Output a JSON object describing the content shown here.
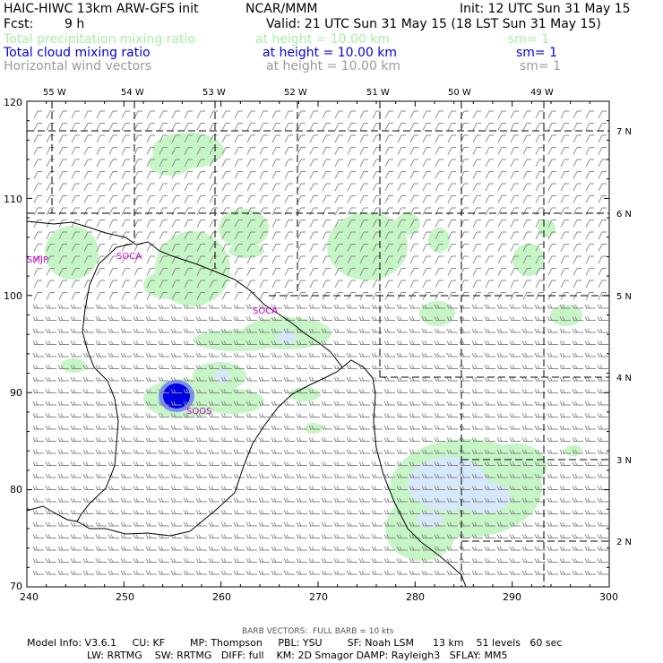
{
  "header": {
    "model": "HAIC-HIWC 13km ARW-GFS init",
    "org": "NCAR/MMM",
    "init": "Init: 12 UTC Sun 31 May 15",
    "fcst_label": "Fcst:",
    "fcst_value": "9 h",
    "valid": "Valid: 21 UTC Sun 31 May 15 (18 LST Sun 31 May 15)"
  },
  "legend": [
    {
      "label": "Total precipitation mixing ratio",
      "height": "at height = 10.00 km",
      "sm": "sm= 1",
      "color": "#a8eea8"
    },
    {
      "label": "Total cloud mixing ratio",
      "height": "at height = 10.00 km",
      "sm": "sm= 1",
      "color": "#0000e6"
    },
    {
      "label": "Horizontal wind vectors",
      "height": "at height = 10.00 km",
      "sm": "sm= 1",
      "color": "#9a9a9a"
    }
  ],
  "map": {
    "lon_labels": [
      "55 W",
      "54 W",
      "53 W",
      "52 W",
      "51 W",
      "50 W",
      "49 W"
    ],
    "lat_labels": [
      "7 N",
      "6 N",
      "5 N",
      "4 N",
      "3 N",
      "2 N"
    ],
    "x_ticks": [
      "240",
      "250",
      "260",
      "270",
      "280",
      "290",
      "300"
    ],
    "y_ticks": [
      "120",
      "110",
      "100",
      "90",
      "80",
      "70"
    ],
    "stations": [
      "SMJP",
      "SOCA",
      "SOCA",
      "SOOS"
    ],
    "land_color": "#000000",
    "precip_color": "#c6f5c6",
    "cloud_color": "#0000e6"
  },
  "footer": {
    "barb": "BARB VECTORS:  FULL BARB = 10 kts",
    "line1": "Model Info: V3.6.1     CU: KF        MP: Thompson     PBL: YSU        SF: Noah LSM      13 km    51 levels   60 sec",
    "line2": "LW: RRTMG    SW: RRTMG   DIFF: full    KM: 2D Smagor DAMP: Rayleigh3   SFLAY: MM5"
  }
}
